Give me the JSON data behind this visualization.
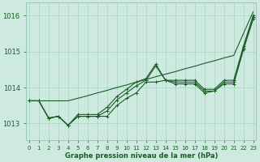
{
  "xlabel": "Graphe pression niveau de la mer (hPa)",
  "ylim": [
    1012.55,
    1016.35
  ],
  "xlim": [
    -0.3,
    23.3
  ],
  "yticks": [
    1013,
    1014,
    1015,
    1016
  ],
  "xticks": [
    0,
    1,
    2,
    3,
    4,
    5,
    6,
    7,
    8,
    9,
    10,
    11,
    12,
    13,
    14,
    15,
    16,
    17,
    18,
    19,
    20,
    21,
    22,
    23
  ],
  "background_color": "#ceeae0",
  "grid_color": "#aad4c4",
  "line_color": "#1a5c28",
  "series_no_marker": [
    [
      1013.63,
      1013.63,
      1013.63,
      1013.63,
      1013.63,
      1013.7,
      1013.77,
      1013.85,
      1013.92,
      1014.0,
      1014.07,
      1014.15,
      1014.22,
      1014.3,
      1014.37,
      1014.44,
      1014.52,
      1014.59,
      1014.67,
      1014.74,
      1014.82,
      1014.89,
      1015.5,
      1016.1
    ]
  ],
  "series_with_markers": [
    [
      1013.63,
      1013.63,
      1013.15,
      1013.2,
      1012.95,
      1013.2,
      1013.2,
      1013.2,
      1013.2,
      1013.5,
      1013.7,
      1013.85,
      1014.15,
      1014.15,
      1014.2,
      1014.1,
      1014.1,
      1014.1,
      1013.85,
      1013.9,
      1014.1,
      1014.1,
      1015.05,
      1015.9
    ],
    [
      1013.63,
      1013.63,
      1013.15,
      1013.2,
      1012.95,
      1013.2,
      1013.2,
      1013.2,
      1013.35,
      1013.65,
      1013.85,
      1014.05,
      1014.2,
      1014.6,
      1014.2,
      1014.15,
      1014.15,
      1014.15,
      1013.9,
      1013.9,
      1014.15,
      1014.15,
      1015.1,
      1015.95
    ],
    [
      1013.63,
      1013.63,
      1013.15,
      1013.2,
      1012.95,
      1013.25,
      1013.25,
      1013.25,
      1013.45,
      1013.75,
      1013.95,
      1014.15,
      1014.25,
      1014.65,
      1014.2,
      1014.2,
      1014.2,
      1014.2,
      1013.95,
      1013.95,
      1014.2,
      1014.2,
      1015.15,
      1016.0
    ]
  ]
}
